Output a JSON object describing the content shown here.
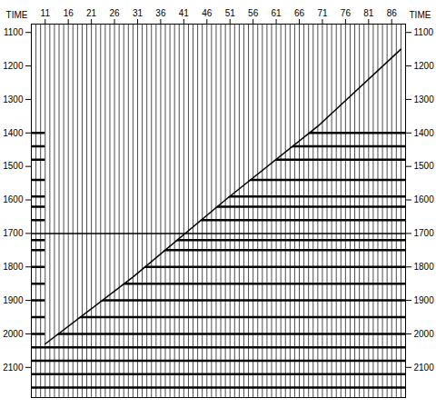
{
  "chart_data": {
    "type": "seismic",
    "y_label": "TIME",
    "traces": [
      9,
      10,
      11,
      12,
      13,
      14,
      15,
      16,
      17,
      18,
      19,
      20,
      21,
      22,
      23,
      24,
      25,
      26,
      27,
      28,
      29,
      30,
      31,
      32,
      33,
      34,
      35,
      36,
      37,
      38,
      39,
      40,
      41,
      42,
      43,
      44,
      45,
      46,
      47,
      48,
      49,
      50,
      51,
      52,
      53,
      54,
      55,
      56,
      57,
      58,
      59,
      60,
      61,
      62,
      63,
      64,
      65,
      66,
      67,
      68,
      69,
      70,
      71,
      72,
      73,
      74,
      75,
      76,
      77,
      78,
      79,
      80,
      81,
      82,
      83,
      84,
      85,
      86,
      87,
      88
    ],
    "xlim": [
      8,
      89
    ],
    "xticks": [
      11,
      16,
      21,
      26,
      31,
      36,
      41,
      46,
      51,
      56,
      61,
      66,
      71,
      76,
      81,
      86
    ],
    "ylim": [
      1075,
      2190
    ],
    "yticks": [
      1100,
      1200,
      1300,
      1400,
      1500,
      1600,
      1700,
      1800,
      1900,
      2000,
      2100
    ],
    "first_break": [
      [
        11,
        2030
      ],
      [
        30,
        1830
      ],
      [
        50,
        1600
      ],
      [
        70,
        1380
      ],
      [
        88,
        1150
      ]
    ],
    "reflectors": [
      1400,
      1440,
      1480,
      1540,
      1590,
      1620,
      1660,
      1720,
      1750,
      1800,
      1850,
      1900,
      1950,
      2000,
      2040,
      2080,
      2120,
      2160
    ],
    "reference_line": 1700,
    "color": "#000000"
  }
}
